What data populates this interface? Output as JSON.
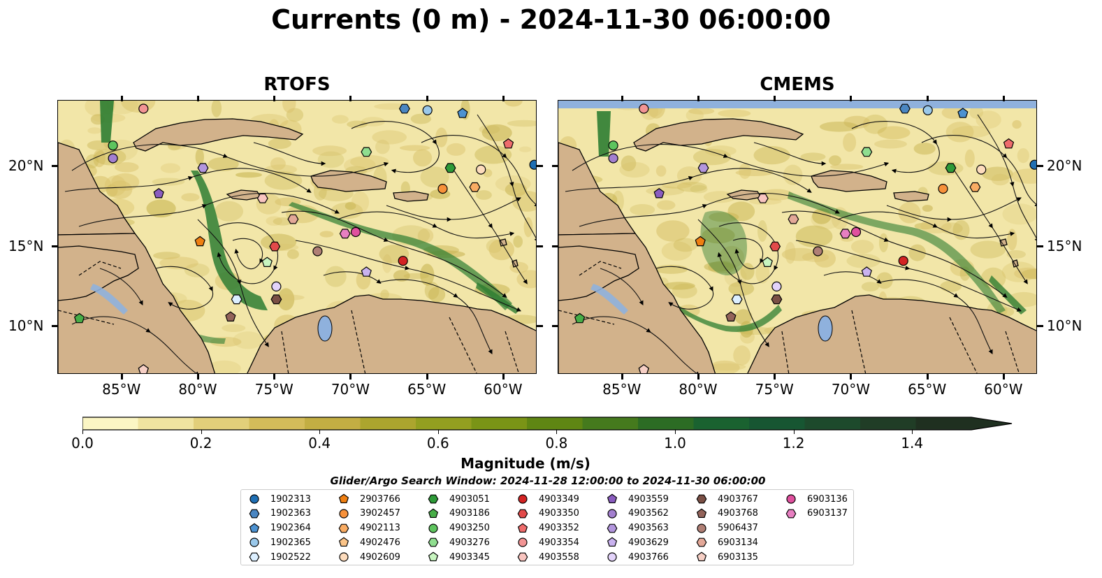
{
  "title": "Currents (0 m) - 2024-11-30 06:00:00",
  "panels": [
    {
      "title": "RTOFS"
    },
    {
      "title": "CMEMS"
    }
  ],
  "axes": {
    "lon_labels": [
      "85°W",
      "80°W",
      "75°W",
      "70°W",
      "65°W",
      "60°W"
    ],
    "lat_labels": [
      "10°N",
      "15°N",
      "20°N"
    ]
  },
  "colorbar": {
    "label": "Magnitude (m/s)",
    "ticks": [
      "0.0",
      "0.2",
      "0.4",
      "0.6",
      "0.8",
      "1.0",
      "1.2",
      "1.4"
    ],
    "range": [
      0,
      1.5
    ],
    "colors": [
      "#fbf6c4",
      "#f0e4a0",
      "#e2cf7a",
      "#d4bc5a",
      "#c3ae43",
      "#aca52e",
      "#939f20",
      "#7a9416",
      "#5f8613",
      "#457a1d",
      "#2c6c24",
      "#1a6230",
      "#175632",
      "#1d4a2c",
      "#203d26",
      "#1f3020"
    ]
  },
  "colors": {
    "land": "#d2b28b",
    "water_lake": "#8fb1dd",
    "ocean_bg": "#f2e6a8",
    "strong_current": "#2e7d32"
  },
  "search_window": "Glider/Argo Search Window: 2024-11-28 12:00:00 to 2024-11-30 06:00:00",
  "legend": [
    {
      "id": "1902313",
      "color": "#1f6fb4",
      "shape": "circle"
    },
    {
      "id": "1902363",
      "color": "#4a86c2",
      "shape": "hexagon"
    },
    {
      "id": "1902364",
      "color": "#4d92d1",
      "shape": "pentagon"
    },
    {
      "id": "1902365",
      "color": "#9ac8ea",
      "shape": "circle"
    },
    {
      "id": "1902522",
      "color": "#dcefff",
      "shape": "hexagon"
    },
    {
      "id": "2903766",
      "color": "#ef7f12",
      "shape": "pentagon"
    },
    {
      "id": "3902457",
      "color": "#f7913a",
      "shape": "circle"
    },
    {
      "id": "4902113",
      "color": "#f9ac63",
      "shape": "hexagon"
    },
    {
      "id": "4902476",
      "color": "#fbc488",
      "shape": "pentagon"
    },
    {
      "id": "4902609",
      "color": "#fddcbd",
      "shape": "circle"
    },
    {
      "id": "4903051",
      "color": "#2e9a38",
      "shape": "hexagon"
    },
    {
      "id": "4903186",
      "color": "#47ad47",
      "shape": "pentagon"
    },
    {
      "id": "4903250",
      "color": "#5ec45e",
      "shape": "circle"
    },
    {
      "id": "4903276",
      "color": "#8fde8f",
      "shape": "hexagon"
    },
    {
      "id": "4903345",
      "color": "#c8f5c0",
      "shape": "pentagon"
    },
    {
      "id": "4903349",
      "color": "#d32323",
      "shape": "circle"
    },
    {
      "id": "4903350",
      "color": "#e24a4a",
      "shape": "hexagon"
    },
    {
      "id": "4903352",
      "color": "#ee6c6c",
      "shape": "pentagon"
    },
    {
      "id": "4903354",
      "color": "#f29494",
      "shape": "circle"
    },
    {
      "id": "4903558",
      "color": "#f9c5c0",
      "shape": "hexagon"
    },
    {
      "id": "4903559",
      "color": "#8a5cbf",
      "shape": "pentagon"
    },
    {
      "id": "4903562",
      "color": "#a37fcf",
      "shape": "circle"
    },
    {
      "id": "4903563",
      "color": "#b396de",
      "shape": "hexagon"
    },
    {
      "id": "4903629",
      "color": "#c9b2ef",
      "shape": "pentagon"
    },
    {
      "id": "4903766",
      "color": "#e3d3fa",
      "shape": "circle"
    },
    {
      "id": "4903767",
      "color": "#7a4f45",
      "shape": "hexagon"
    },
    {
      "id": "4903768",
      "color": "#93635a",
      "shape": "pentagon"
    },
    {
      "id": "5906437",
      "color": "#b07f75",
      "shape": "circle"
    },
    {
      "id": "6903134",
      "color": "#e3a898",
      "shape": "hexagon"
    },
    {
      "id": "6903135",
      "color": "#f6cfc5",
      "shape": "pentagon"
    },
    {
      "id": "6903136",
      "color": "#e0509e",
      "shape": "circle"
    },
    {
      "id": "6903137",
      "color": "#e77fc1",
      "shape": "hexagon"
    }
  ]
}
